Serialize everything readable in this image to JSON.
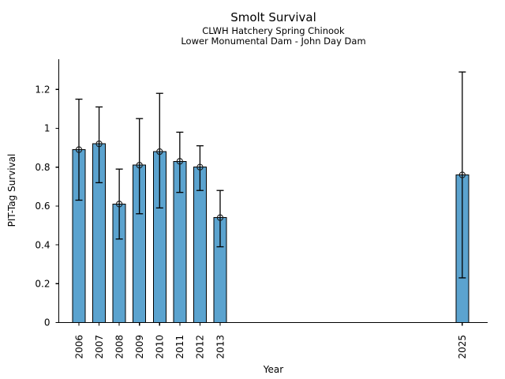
{
  "chart_data": {
    "type": "bar",
    "title": "Smolt Survival",
    "subtitle_line1": "CLWH Hatchery Spring Chinook",
    "subtitle_line2": "Lower Monumental Dam - John Day Dam",
    "xlabel": "Year",
    "ylabel": "PIT-Tag Survival",
    "categories": [
      2006,
      2007,
      2008,
      2009,
      2010,
      2011,
      2012,
      2013,
      2025
    ],
    "values": [
      0.89,
      0.92,
      0.61,
      0.81,
      0.88,
      0.83,
      0.8,
      0.54,
      0.76
    ],
    "error_low": [
      0.63,
      0.72,
      0.43,
      0.56,
      0.59,
      0.67,
      0.68,
      0.39,
      0.23
    ],
    "error_high": [
      1.15,
      1.11,
      0.79,
      1.05,
      1.18,
      0.98,
      0.91,
      0.68,
      1.29
    ],
    "ytick_values": [
      0,
      0.2,
      0.4,
      0.6,
      0.8,
      1,
      1.2
    ],
    "ytick_labels": [
      "0",
      "0.2",
      "0.4",
      "0.6",
      "0.8",
      "1",
      "1.2"
    ],
    "ylim": [
      0,
      1.35
    ],
    "xlim": [
      2005,
      2026.3
    ],
    "grid": false,
    "legend": null,
    "bar_color": "#5BA3CF",
    "bar_edge_color": "#000000",
    "error_bar_color": "#000000",
    "marker": "open-circle"
  }
}
